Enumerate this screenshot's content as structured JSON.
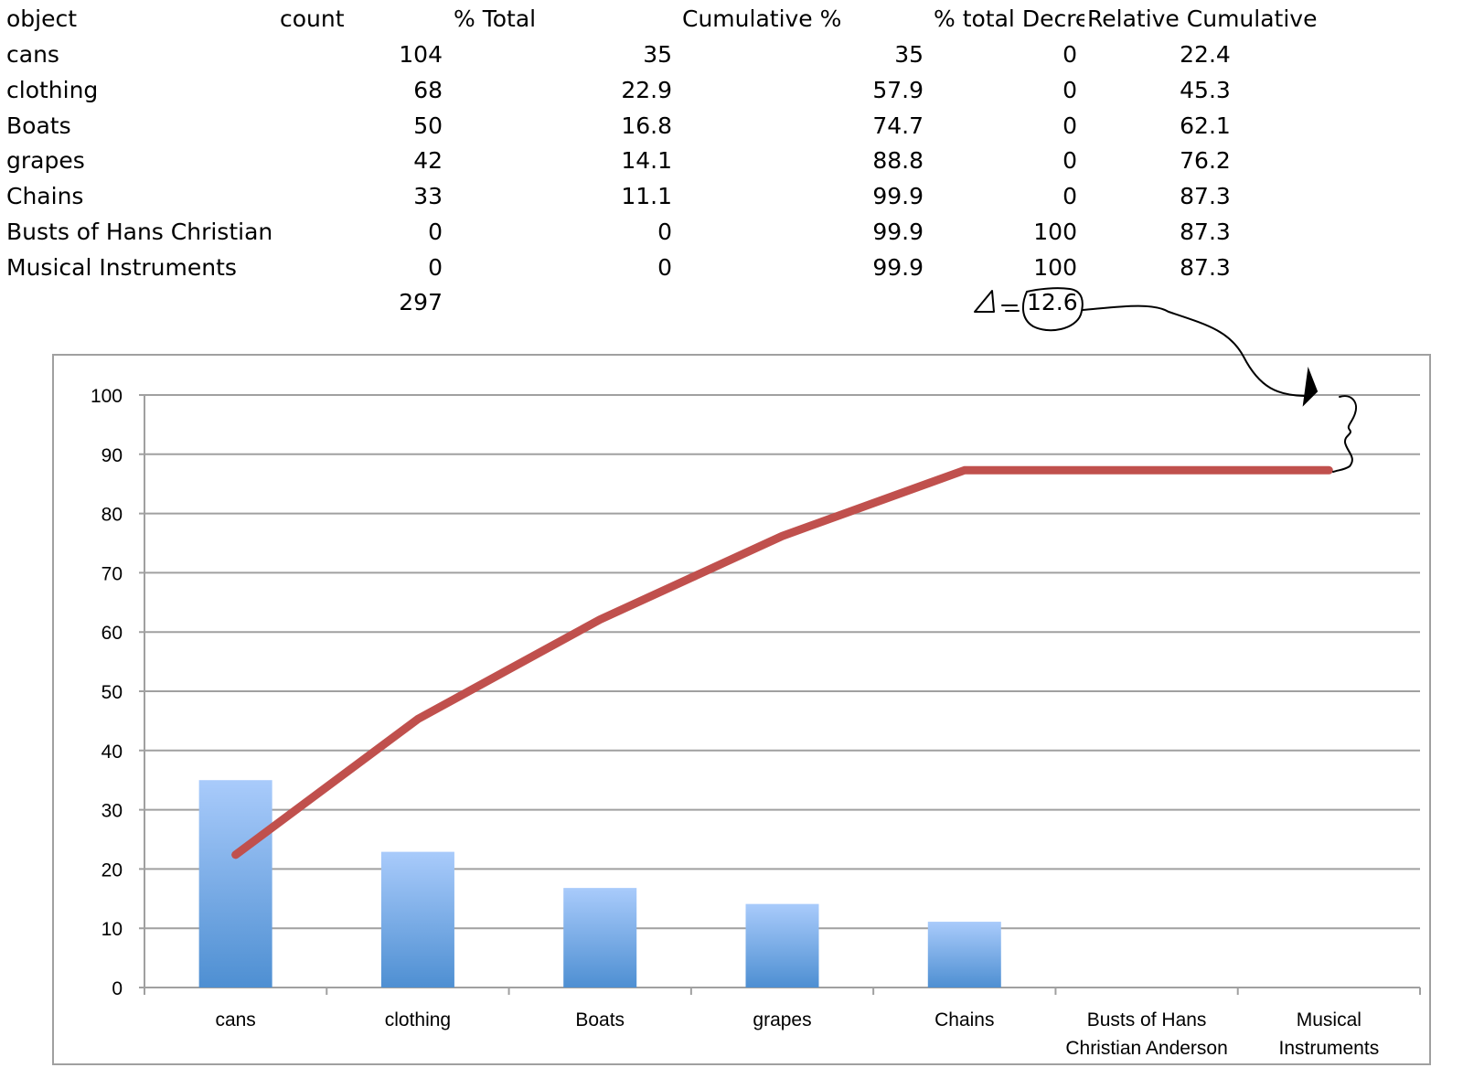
{
  "table": {
    "headers": [
      "object",
      "count",
      "% Total",
      "Cumulative %",
      "% total Decre",
      "Relative Cumulative"
    ],
    "rows": [
      {
        "object": "cans",
        "count": "104",
        "pct_total": "35",
        "cumulative": "35",
        "pct_decrease": "0",
        "relative_cumulative": "22.4"
      },
      {
        "object": "clothing",
        "count": "68",
        "pct_total": "22.9",
        "cumulative": "57.9",
        "pct_decrease": "0",
        "relative_cumulative": "45.3"
      },
      {
        "object": "Boats",
        "count": "50",
        "pct_total": "16.8",
        "cumulative": "74.7",
        "pct_decrease": "0",
        "relative_cumulative": "62.1"
      },
      {
        "object": "grapes",
        "count": "42",
        "pct_total": "14.1",
        "cumulative": "88.8",
        "pct_decrease": "0",
        "relative_cumulative": "76.2"
      },
      {
        "object": "Chains",
        "count": "33",
        "pct_total": "11.1",
        "cumulative": "99.9",
        "pct_decrease": "0",
        "relative_cumulative": "87.3"
      },
      {
        "object": "Busts of Hans Christian",
        "count": "0",
        "pct_total": "0",
        "cumulative": "99.9",
        "pct_decrease": "100",
        "relative_cumulative": "87.3"
      },
      {
        "object": "Musical Instruments",
        "count": "0",
        "pct_total": "0",
        "cumulative": "99.9",
        "pct_decrease": "100",
        "relative_cumulative": "87.3"
      }
    ],
    "total_count": "297"
  },
  "annotation": {
    "delta_symbol": "Δ",
    "delta_value": "12.6"
  },
  "colors": {
    "bar_top": "#a9cbfb",
    "bar_bottom": "#4e8fd2",
    "line": "#c0504d",
    "grid": "#a0a0a0",
    "annotation": "#000000"
  },
  "chart_data": {
    "type": "bar",
    "title": "",
    "xlabel": "",
    "ylabel": "",
    "ylim": [
      0,
      100
    ],
    "yticks": [
      0,
      10,
      20,
      30,
      40,
      50,
      60,
      70,
      80,
      90,
      100
    ],
    "grid": true,
    "legend": "none",
    "categories": [
      "cans",
      "clothing",
      "Boats",
      "grapes",
      "Chains",
      "Busts of Hans Christian Anderson",
      "Musical Instruments"
    ],
    "category_lines": [
      [
        "cans"
      ],
      [
        "clothing"
      ],
      [
        "Boats"
      ],
      [
        "grapes"
      ],
      [
        "Chains"
      ],
      [
        "Busts of Hans",
        "Christian Anderson"
      ],
      [
        "Musical",
        "Instruments"
      ]
    ],
    "series": [
      {
        "name": "% Total",
        "type": "bar",
        "values": [
          35,
          22.9,
          16.8,
          14.1,
          11.1,
          0,
          0
        ]
      },
      {
        "name": "Relative Cumulative",
        "type": "line",
        "values": [
          22.4,
          45.3,
          62.1,
          76.2,
          87.3,
          87.3,
          87.3
        ]
      }
    ],
    "annotations": [
      {
        "text": "Δ = 12.6",
        "note": "hand-drawn arrow from 12.6 to gap between 100 and 87.3 at right end of line, with brace"
      }
    ]
  }
}
